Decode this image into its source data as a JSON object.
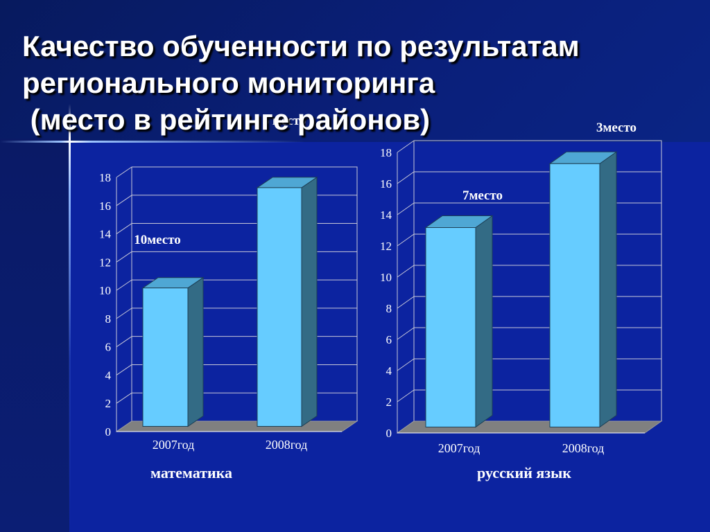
{
  "slide": {
    "title_lines": [
      "Качество обученности по результатам",
      "регионального мониторинга",
      " (место в рейтинге районов)"
    ]
  },
  "chart_data": [
    {
      "type": "bar",
      "categories": [
        "2007год",
        "2008год"
      ],
      "values": [
        9.8,
        16.9
      ],
      "data_labels": [
        "10место",
        "5 место"
      ],
      "xlabel": "математика",
      "ylim": [
        0,
        18
      ],
      "yticks": [
        0,
        2,
        4,
        6,
        8,
        10,
        12,
        14,
        16,
        18
      ],
      "grid": true,
      "colors": {
        "bar_front": "#66ccff",
        "bar_top": "#4fa7d4",
        "bar_side": "#336b85",
        "floor": "#808080"
      }
    },
    {
      "type": "bar",
      "categories": [
        "2007год",
        "2008год"
      ],
      "values": [
        12.8,
        16.9
      ],
      "data_labels": [
        "7место",
        "3место"
      ],
      "xlabel": "русский язык",
      "ylim": [
        0,
        18
      ],
      "yticks": [
        0,
        2,
        4,
        6,
        8,
        10,
        12,
        14,
        16,
        18
      ],
      "grid": true,
      "colors": {
        "bar_front": "#66ccff",
        "bar_top": "#4fa7d4",
        "bar_side": "#336b85",
        "floor": "#808080"
      }
    }
  ]
}
